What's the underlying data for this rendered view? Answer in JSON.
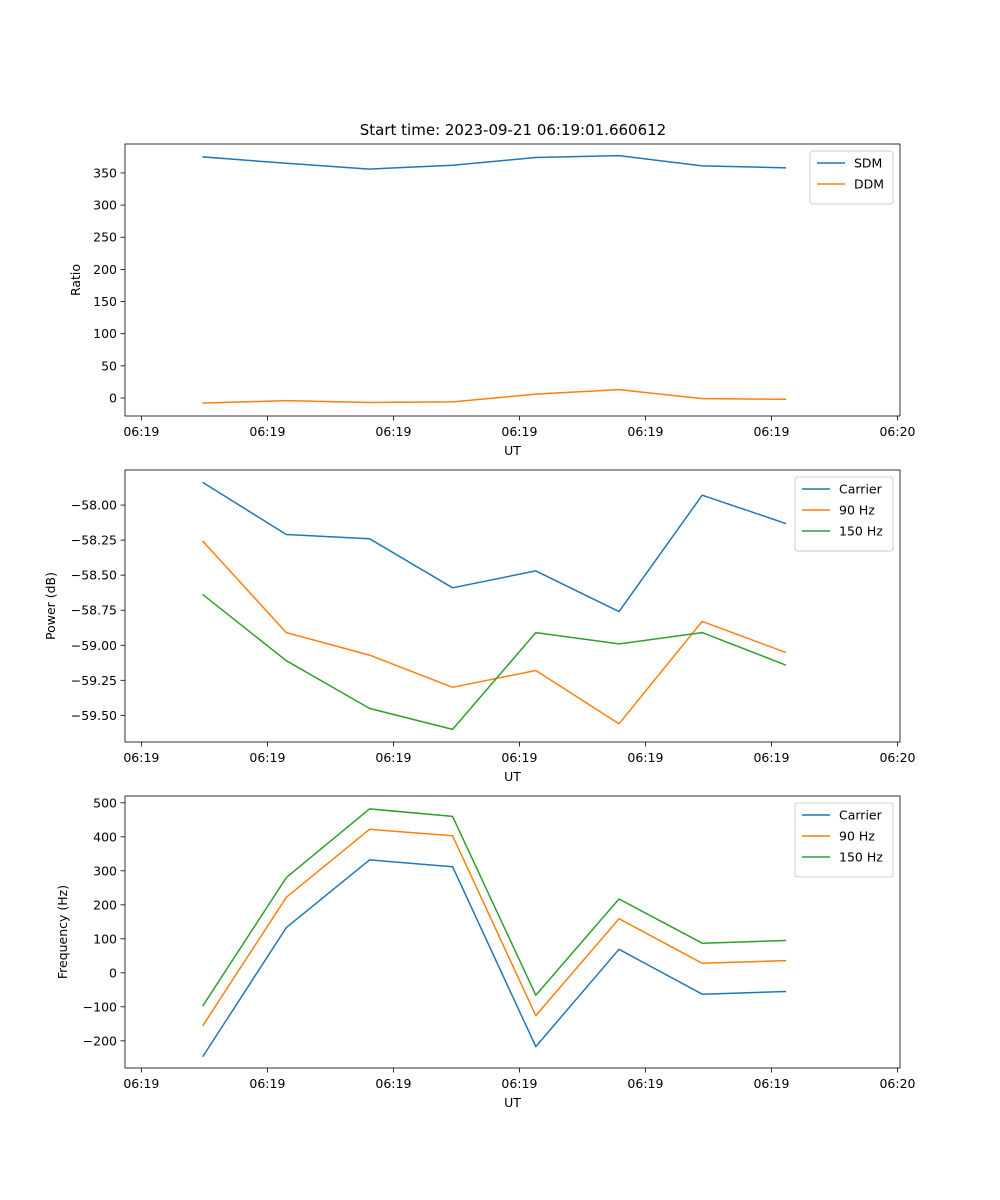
{
  "figure_title": "Start time: 2023-09-21 06:19:01.660612",
  "colors": {
    "blue": "#1f77b4",
    "orange": "#ff7f0e",
    "green": "#2ca02c",
    "legend_edge": "#cccccc",
    "axis": "#000000"
  },
  "chart_data": [
    {
      "type": "line",
      "title": "Start time: 2023-09-21 06:19:01.660612",
      "xlabel": "UT",
      "ylabel": "Ratio",
      "x_tick_labels": [
        "06:19",
        "06:19",
        "06:19",
        "06:19",
        "06:19",
        "06:19",
        "06:20"
      ],
      "x_range": [
        -0.13,
        6.02
      ],
      "x": [
        0.49,
        1.15,
        1.81,
        2.47,
        3.13,
        3.79,
        4.45,
        5.11
      ],
      "ylim": [
        -28,
        395
      ],
      "y_ticks": [
        0,
        50,
        100,
        150,
        200,
        250,
        300,
        350
      ],
      "y_tick_labels": [
        "0",
        "50",
        "100",
        "150",
        "200",
        "250",
        "300",
        "350"
      ],
      "legend_position": "upper right",
      "series": [
        {
          "name": "SDM",
          "color": "#1f77b4",
          "values": [
            375,
            365,
            356,
            362,
            374,
            377,
            361,
            358
          ]
        },
        {
          "name": "DDM",
          "color": "#ff7f0e",
          "values": [
            -8,
            -4,
            -7,
            -6,
            6,
            13,
            -1,
            -2
          ]
        }
      ]
    },
    {
      "type": "line",
      "xlabel": "UT",
      "ylabel": "Power (dB)",
      "x_tick_labels": [
        "06:19",
        "06:19",
        "06:19",
        "06:19",
        "06:19",
        "06:19",
        "06:20"
      ],
      "x_range": [
        -0.13,
        6.02
      ],
      "x": [
        0.49,
        1.15,
        1.81,
        2.47,
        3.13,
        3.79,
        4.45,
        5.11
      ],
      "ylim": [
        -59.69,
        -57.75
      ],
      "y_ticks": [
        -58.0,
        -58.25,
        -58.5,
        -58.75,
        -59.0,
        -59.25,
        -59.5
      ],
      "y_tick_labels": [
        "−58.00",
        "−58.25",
        "−58.50",
        "−58.75",
        "−59.00",
        "−59.25",
        "−59.50"
      ],
      "legend_position": "upper right",
      "series": [
        {
          "name": "Carrier",
          "color": "#1f77b4",
          "values": [
            -57.84,
            -58.21,
            -58.24,
            -58.59,
            -58.47,
            -58.76,
            -57.93,
            -58.13
          ]
        },
        {
          "name": "90 Hz",
          "color": "#ff7f0e",
          "values": [
            -58.26,
            -58.91,
            -59.07,
            -59.3,
            -59.18,
            -59.56,
            -58.83,
            -59.05
          ]
        },
        {
          "name": "150 Hz",
          "color": "#2ca02c",
          "values": [
            -58.64,
            -59.11,
            -59.45,
            -59.6,
            -58.91,
            -58.99,
            -58.91,
            -59.14
          ]
        }
      ]
    },
    {
      "type": "line",
      "xlabel": "UT",
      "ylabel": "Frequency (Hz)",
      "x_tick_labels": [
        "06:19",
        "06:19",
        "06:19",
        "06:19",
        "06:19",
        "06:19",
        "06:20"
      ],
      "x_range": [
        -0.13,
        6.02
      ],
      "x": [
        0.49,
        1.15,
        1.81,
        2.47,
        3.13,
        3.79,
        4.45,
        5.11
      ],
      "ylim": [
        -280,
        520
      ],
      "y_ticks": [
        -200,
        -100,
        0,
        100,
        200,
        300,
        400,
        500
      ],
      "y_tick_labels": [
        "−200",
        "−100",
        "0",
        "100",
        "200",
        "300",
        "400",
        "500"
      ],
      "legend_position": "upper right",
      "series": [
        {
          "name": "Carrier",
          "color": "#1f77b4",
          "values": [
            -245,
            133,
            332,
            312,
            -217,
            69,
            -63,
            -55
          ]
        },
        {
          "name": "90 Hz",
          "color": "#ff7f0e",
          "values": [
            -154,
            222,
            422,
            403,
            -126,
            159,
            28,
            36
          ]
        },
        {
          "name": "150 Hz",
          "color": "#2ca02c",
          "values": [
            -96,
            280,
            482,
            460,
            -66,
            217,
            87,
            95
          ]
        }
      ]
    }
  ]
}
